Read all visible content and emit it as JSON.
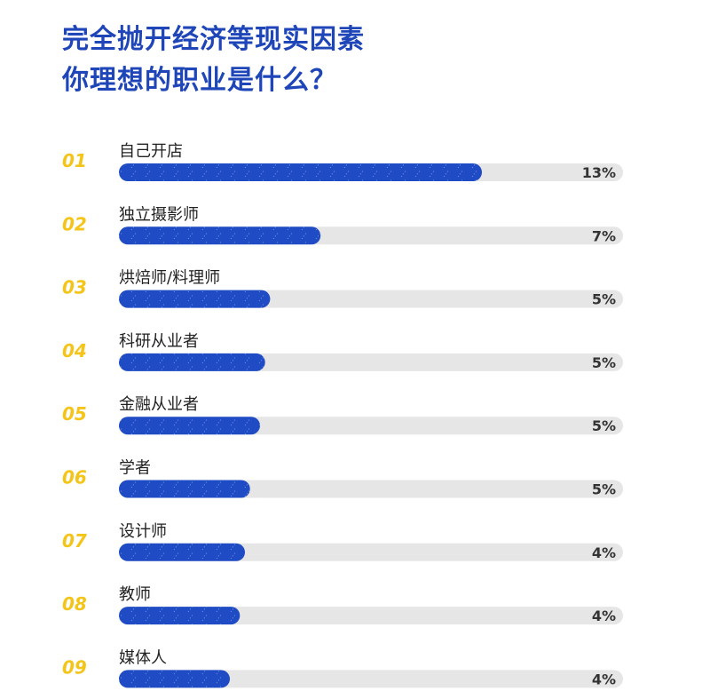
{
  "title": {
    "line1": "完全抛开经济等现实因素",
    "line2": "你理想的职业是什么？"
  },
  "colors": {
    "title": "#1f46b8",
    "bar": "#1f4bc4",
    "track": "#e6e6e6",
    "rank": "#f4c518",
    "text": "#222222",
    "value": "#333333"
  },
  "chart_data": {
    "type": "bar",
    "orientation": "horizontal",
    "title": "完全抛开经济等现实因素 你理想的职业是什么？",
    "unit": "%",
    "ranks": [
      "01",
      "02",
      "03",
      "04",
      "05",
      "06",
      "07",
      "08",
      "09"
    ],
    "categories": [
      "自己开店",
      "独立摄影师",
      "烘焙师/料理师",
      "科研从业者",
      "金融从业者",
      "学者",
      "设计师",
      "教师",
      "媒体人"
    ],
    "values": [
      13,
      7,
      5,
      5,
      5,
      5,
      4,
      4,
      4
    ],
    "value_labels": [
      "13%",
      "7%",
      "5%",
      "5%",
      "5%",
      "5%",
      "4%",
      "4%",
      "4%"
    ],
    "fill_fraction": [
      0.72,
      0.4,
      0.3,
      0.29,
      0.28,
      0.26,
      0.25,
      0.24,
      0.22
    ]
  }
}
